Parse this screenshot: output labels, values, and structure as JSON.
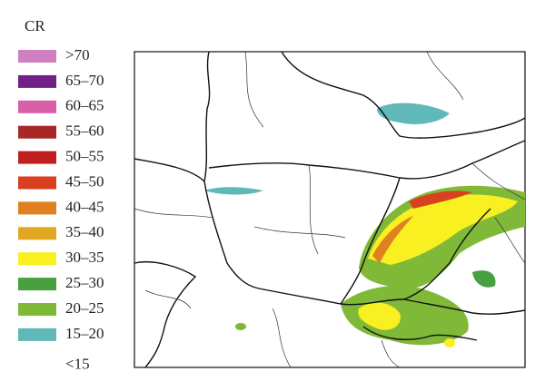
{
  "legend": {
    "title": "CR",
    "items": [
      {
        "label": ">70",
        "color": "#d080c0"
      },
      {
        "label": "65–70",
        "color": "#702088"
      },
      {
        "label": "60–65",
        "color": "#d860a8"
      },
      {
        "label": "55–60",
        "color": "#a82828"
      },
      {
        "label": "50–55",
        "color": "#c02020"
      },
      {
        "label": "45–50",
        "color": "#d84020"
      },
      {
        "label": "40–45",
        "color": "#e08020"
      },
      {
        "label": "35–40",
        "color": "#e0a820"
      },
      {
        "label": "30–35",
        "color": "#f8f020"
      },
      {
        "label": "25–30",
        "color": "#48a040"
      },
      {
        "label": "20–25",
        "color": "#80b838"
      },
      {
        "label": "15–20",
        "color": "#60b8b8"
      },
      {
        "label": "<15"
      }
    ]
  }
}
